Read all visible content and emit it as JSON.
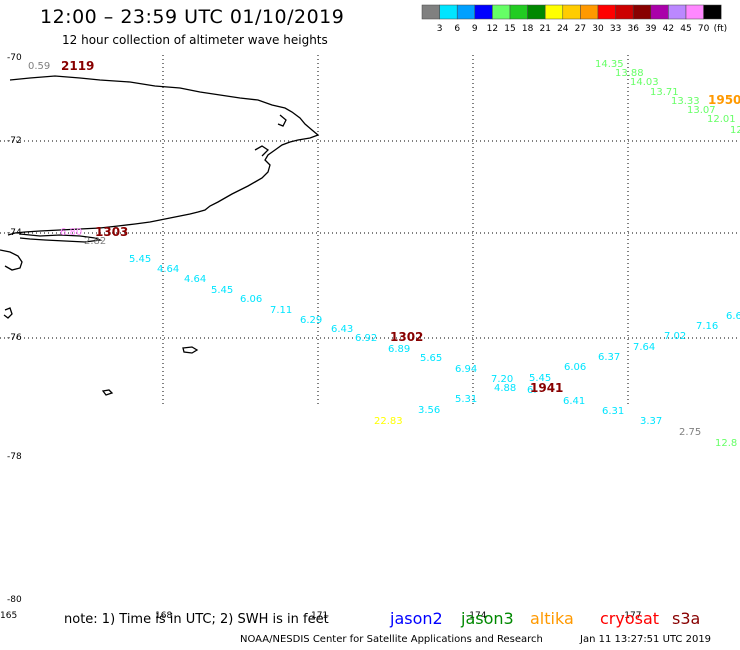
{
  "header": {
    "title": "12:00 – 23:59 UTC 01/10/2019",
    "subtitle": "12 hour collection of altimeter wave heights"
  },
  "legend": {
    "unit": "(ft)",
    "bins": [
      {
        "label": "3",
        "color": "#808080"
      },
      {
        "label": "6",
        "color": "#00e5ff"
      },
      {
        "label": "9",
        "color": "#00a0ff"
      },
      {
        "label": "12",
        "color": "#0000ff"
      },
      {
        "label": "15",
        "color": "#66ff66"
      },
      {
        "label": "18",
        "color": "#22cc22"
      },
      {
        "label": "21",
        "color": "#008800"
      },
      {
        "label": "24",
        "color": "#ffff00"
      },
      {
        "label": "27",
        "color": "#ffcc00"
      },
      {
        "label": "30",
        "color": "#ff9900"
      },
      {
        "label": "33",
        "color": "#ff0000"
      },
      {
        "label": "36",
        "color": "#cc0000"
      },
      {
        "label": "39",
        "color": "#880000"
      },
      {
        "label": "42",
        "color": "#aa00aa"
      },
      {
        "label": "45",
        "color": "#bb88ff"
      },
      {
        "label": "70",
        "color": "#ff88ff"
      },
      {
        "label": "",
        "color": "#000000"
      }
    ]
  },
  "axes": {
    "lat_labels": [
      "-70",
      "-72",
      "-74",
      "-76",
      "-78",
      "-80"
    ],
    "lon_labels": [
      "165",
      "168",
      "171",
      "-174",
      "-177"
    ]
  },
  "observations": [
    {
      "v": "0.59",
      "c": "#808080"
    },
    {
      "v": "2119",
      "c": "#880000",
      "pass": true
    },
    {
      "v": "14.35",
      "c": "#66ff66"
    },
    {
      "v": "13.88",
      "c": "#66ff66"
    },
    {
      "v": "14.03",
      "c": "#66ff66"
    },
    {
      "v": "13.71",
      "c": "#66ff66"
    },
    {
      "v": "13.33",
      "c": "#66ff66"
    },
    {
      "v": "1950",
      "c": "#ff9900",
      "pass": true
    },
    {
      "v": "13.07",
      "c": "#66ff66"
    },
    {
      "v": "12.01",
      "c": "#66ff66"
    },
    {
      "v": "12",
      "c": "#66ff66"
    },
    {
      "v": "6.80",
      "c": "#ff88ff"
    },
    {
      "v": "1303",
      "c": "#880000",
      "pass": true
    },
    {
      "v": "2.82",
      "c": "#808080"
    },
    {
      "v": "5.45",
      "c": "#00e5ff"
    },
    {
      "v": "4.64",
      "c": "#00e5ff"
    },
    {
      "v": "4.64",
      "c": "#00e5ff"
    },
    {
      "v": "5.45",
      "c": "#00e5ff"
    },
    {
      "v": "6.06",
      "c": "#00e5ff"
    },
    {
      "v": "7.11",
      "c": "#00e5ff"
    },
    {
      "v": "6.29",
      "c": "#00e5ff"
    },
    {
      "v": "6.43",
      "c": "#00e5ff"
    },
    {
      "v": "6.92",
      "c": "#00e5ff"
    },
    {
      "v": "1302",
      "c": "#880000",
      "pass": true
    },
    {
      "v": "6.89",
      "c": "#00e5ff"
    },
    {
      "v": "5.65",
      "c": "#00e5ff"
    },
    {
      "v": "6.94",
      "c": "#00e5ff"
    },
    {
      "v": "7.20",
      "c": "#00e5ff"
    },
    {
      "v": "5.45",
      "c": "#00e5ff"
    },
    {
      "v": "4.88",
      "c": "#00e5ff"
    },
    {
      "v": "6.",
      "c": "#00e5ff"
    },
    {
      "v": "1941",
      "c": "#880000",
      "pass": true
    },
    {
      "v": "6.06",
      "c": "#00e5ff"
    },
    {
      "v": "6.37",
      "c": "#00e5ff"
    },
    {
      "v": "7.64",
      "c": "#00e5ff"
    },
    {
      "v": "7.02",
      "c": "#00e5ff"
    },
    {
      "v": "7.16",
      "c": "#00e5ff"
    },
    {
      "v": "6.6",
      "c": "#00e5ff"
    },
    {
      "v": "5.31",
      "c": "#00e5ff"
    },
    {
      "v": "6.41",
      "c": "#00e5ff"
    },
    {
      "v": "6.31",
      "c": "#00e5ff"
    },
    {
      "v": "3.56",
      "c": "#00e5ff"
    },
    {
      "v": "22.83",
      "c": "#ffff00"
    },
    {
      "v": "3.37",
      "c": "#00e5ff"
    },
    {
      "v": "2.75",
      "c": "#808080"
    },
    {
      "v": "12.8",
      "c": "#66ff66"
    }
  ],
  "footer": {
    "note": "note:  1)  Time is in UTC;  2)  SWH is in feet",
    "satellites": [
      {
        "name": "jason2",
        "color": "#0000ff"
      },
      {
        "name": "jason3",
        "color": "#008800"
      },
      {
        "name": "altika",
        "color": "#ff9900"
      },
      {
        "name": "cryosat",
        "color": "#ff0000"
      },
      {
        "name": "s3a",
        "color": "#880000"
      }
    ],
    "credit": "NOAA/NESDIS Center for Satellite Applications and Research",
    "timestamp": "Jan 11 13:27:51 UTC 2019"
  }
}
